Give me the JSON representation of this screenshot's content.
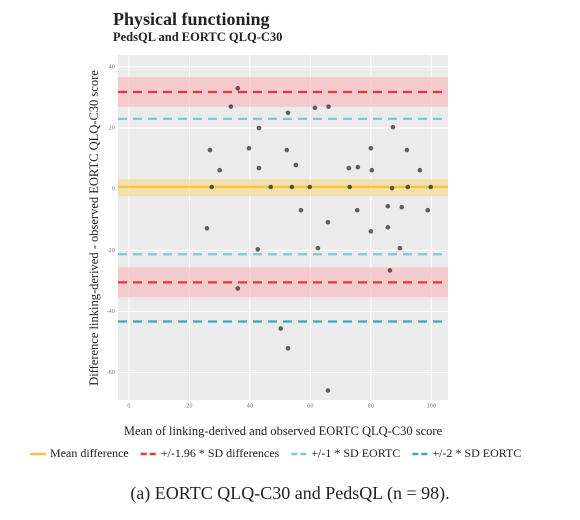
{
  "chart_data": {
    "type": "scatter",
    "title": "Physical functioning",
    "subtitle": "PedsQL and EORTC QLQ-C30",
    "x_label": "Mean of linking-derived and observed EORTC QLQ-C30 score",
    "y_label": "Difference linking-derived - observed EORTC QLQ-C30 score",
    "caption": "(a) EORTC QLQ-C30 and PedsQL (n = 98).",
    "xlim": [
      -3.6,
      105.5
    ],
    "ylim": [
      -69,
      43.9
    ],
    "xticks": [
      0,
      20,
      40,
      60,
      80,
      100
    ],
    "yticks": [
      -60,
      -40,
      -20,
      0,
      20,
      40
    ],
    "grid": true,
    "point_color": "#000000",
    "x": [
      36,
      33.7,
      61.5,
      66,
      52.6,
      43,
      26.8,
      39.7,
      52.2,
      55.2,
      80,
      87.3,
      91.9,
      96.2,
      30,
      43,
      72.7,
      75.7,
      80.3,
      27.4,
      46.9,
      53.9,
      59.8,
      73,
      87,
      92.2,
      99.8,
      56.9,
      75.5,
      85.6,
      90.2,
      98.8,
      65.8,
      80,
      85.6,
      89.6,
      42.6,
      62.5,
      25.8,
      86.3,
      36,
      50.2,
      52.6,
      65.8
    ],
    "y": [
      33,
      27,
      26.6,
      27,
      25,
      20,
      12.8,
      13.4,
      12.8,
      7.9,
      13.4,
      20.3,
      12.8,
      6.2,
      6.2,
      6.9,
      6.9,
      7.2,
      6.2,
      0.7,
      0.7,
      0.7,
      0.7,
      0.7,
      0.3,
      0.7,
      0.7,
      -6.9,
      -6.9,
      -5.6,
      -5.9,
      -6.9,
      -10.8,
      -13.8,
      -12.5,
      -19.3,
      -19.7,
      -19.3,
      -12.8,
      -26.6,
      -32.5,
      -45.6,
      -52.1,
      -65.9
    ],
    "reference_lines": [
      {
        "name": "Mean difference",
        "color": "#f5c242",
        "dashed": false,
        "values": [
          0.7
        ],
        "bands": [
          [
            -2.3,
            3.3
          ]
        ],
        "band_color": "#f5d98a"
      },
      {
        "name": "+/-1.96 * SD differences",
        "color": "#e8343c",
        "dashed": true,
        "values": [
          31.8,
          -30.5
        ],
        "bands": [
          [
            26.9,
            36.7
          ],
          [
            -35.4,
            -25.6
          ]
        ],
        "band_color": "#f7b8bf"
      },
      {
        "name": "+/-1 * SD EORTC",
        "color": "#7fc9d0",
        "dashed": true,
        "values": [
          23,
          -21.3
        ],
        "bands": [],
        "band_color": "#ffffff"
      },
      {
        "name": "+/-2 * SD EORTC",
        "color": "#3aa6bf",
        "dashed": true,
        "values": [
          -43.3
        ],
        "bands": [],
        "band_color": "#ffffff"
      }
    ]
  }
}
